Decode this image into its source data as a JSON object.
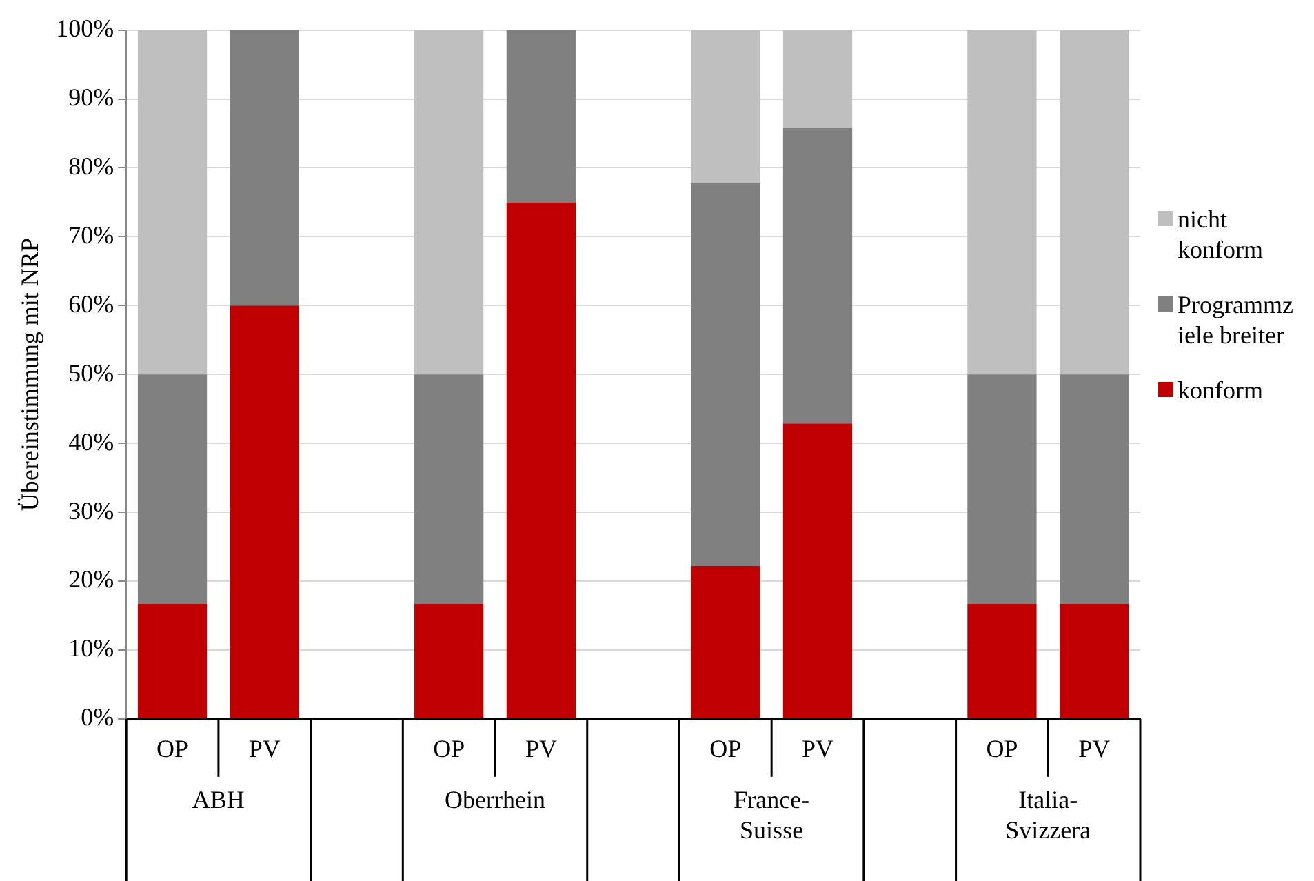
{
  "chart_data": {
    "type": "bar",
    "stacked": true,
    "ylabel": "Übereinstimmung mit NRP",
    "categories": [
      "OP",
      "PV",
      null,
      "OP",
      "PV",
      null,
      "OP",
      "PV",
      null,
      "OP",
      "PV"
    ],
    "annotations": [
      "ABH",
      "Oberrhein",
      "France-Suisse",
      "Italia-Svizzera"
    ],
    "series": [
      {
        "name": "konform",
        "color": "#c00000",
        "values": [
          16.7,
          60,
          null,
          16.7,
          75,
          null,
          22.2,
          42.9,
          null,
          16.7,
          16.7
        ]
      },
      {
        "name": "Programmziele breiter",
        "color": "#808080",
        "values": [
          33.3,
          40,
          null,
          33.3,
          25,
          null,
          55.6,
          42.9,
          null,
          33.3,
          33.3
        ]
      },
      {
        "name": "nicht konform",
        "color": "#bfbfbf",
        "values": [
          50,
          0,
          null,
          50,
          0,
          null,
          22.2,
          14.3,
          null,
          50,
          50
        ]
      }
    ],
    "ylim": [
      0,
      100
    ],
    "yticks": [
      {
        "value": 0,
        "label": "0%"
      },
      {
        "value": 10,
        "label": "10%"
      },
      {
        "value": 20,
        "label": "20%"
      },
      {
        "value": 30,
        "label": "30%"
      },
      {
        "value": 40,
        "label": "40%"
      },
      {
        "value": 50,
        "label": "50%"
      },
      {
        "value": 60,
        "label": "60%"
      },
      {
        "value": 70,
        "label": "70%"
      },
      {
        "value": 80,
        "label": "80%"
      },
      {
        "value": 90,
        "label": "90%"
      },
      {
        "value": 100,
        "label": "100%"
      }
    ],
    "grid": "y",
    "legend": "right"
  }
}
